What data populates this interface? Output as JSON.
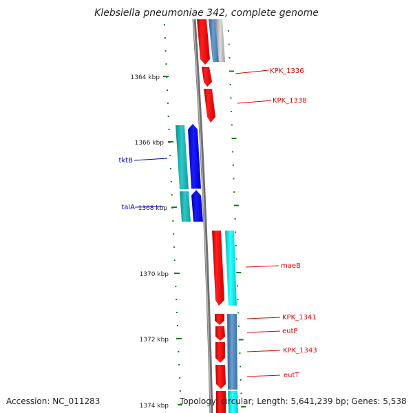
{
  "title": "Klebsiella pneumoniae 342, complete genome",
  "footer": {
    "accession": "Accession: NC_011283",
    "topology": "Topology: circular; Length: 5,641,239 bp; Genes: 5,538"
  },
  "ruler": [
    {
      "label": "1364 kbp"
    },
    {
      "label": "1366 kbp"
    },
    {
      "label": "1368 kbp"
    },
    {
      "label": "1370 kbp"
    },
    {
      "label": "1372 kbp"
    },
    {
      "label": "1374 kbp"
    }
  ],
  "gene_labels": [
    {
      "text": "KPK_1336",
      "color": "#e00000"
    },
    {
      "text": "KPK_1338",
      "color": "#e00000"
    },
    {
      "text": "tktB",
      "color": "#0000c0"
    },
    {
      "text": "talA",
      "color": "#0000c0"
    },
    {
      "text": "maeB",
      "color": "#e00000"
    },
    {
      "text": "KPK_1341",
      "color": "#e00000"
    },
    {
      "text": "eutP",
      "color": "#e00000"
    },
    {
      "text": "KPK_1343",
      "color": "#e00000"
    },
    {
      "text": "eutT",
      "color": "#e00000"
    }
  ],
  "colors": {
    "forward_gene": "#ee0000",
    "reverse_gene": "#0000ee",
    "rna_cyan": "#00dddd",
    "teal": "#20b0b0",
    "steel": "#4a7fb5",
    "backbone": "#777777",
    "ruler": "#1a7a1a"
  }
}
